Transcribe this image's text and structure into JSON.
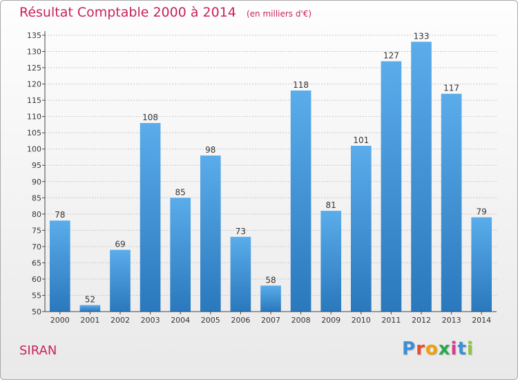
{
  "header": {
    "title": "Résultat Comptable 2000 à 2014",
    "unit": "(en milliers d'€)"
  },
  "footer": {
    "city": "SIRAN",
    "logo_letters": [
      "P",
      "r",
      "o",
      "x",
      "i",
      "t",
      "i"
    ]
  },
  "colors": {
    "title": "#c8215c",
    "bar_top": "#5aacea",
    "bar_bottom": "#2a78bd",
    "logo": [
      "#3b8fd6",
      "#e94d2a",
      "#f0a10a",
      "#2aa84a",
      "#d43f8d",
      "#3b8fd6",
      "#8cc63f"
    ]
  },
  "chart_data": {
    "type": "bar",
    "title": "Résultat Comptable 2000 à 2014",
    "subtitle": "(en milliers d'€)",
    "xlabel": "",
    "ylabel": "",
    "categories": [
      "2000",
      "2001",
      "2002",
      "2003",
      "2004",
      "2005",
      "2006",
      "2007",
      "2008",
      "2009",
      "2010",
      "2011",
      "2012",
      "2013",
      "2014"
    ],
    "values": [
      78,
      52,
      69,
      108,
      85,
      98,
      73,
      58,
      118,
      81,
      101,
      127,
      133,
      117,
      79
    ],
    "ylim": [
      50,
      135
    ],
    "yticks": [
      50,
      55,
      60,
      65,
      70,
      75,
      80,
      85,
      90,
      95,
      100,
      105,
      110,
      115,
      120,
      125,
      130,
      135
    ],
    "grid": true
  }
}
